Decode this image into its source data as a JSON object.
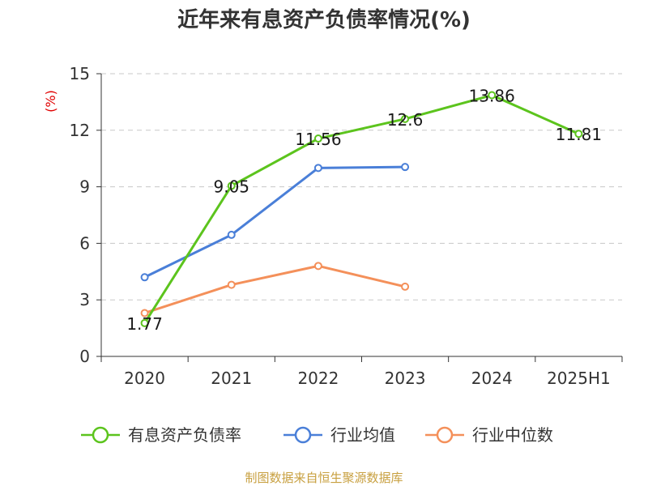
{
  "chart_data": {
    "type": "line",
    "title": "近年来有息资产负债率情况(%)",
    "y_unit": "(%)",
    "categories": [
      "2020",
      "2021",
      "2022",
      "2023",
      "2024",
      "2025H1"
    ],
    "ylim": [
      0,
      15
    ],
    "yticks": [
      "0",
      "3",
      "6",
      "9",
      "12",
      "15"
    ],
    "grid": true,
    "legend_position": "bottom",
    "series": [
      {
        "name": "有息资产负债率",
        "color": "#5cc41d",
        "values": [
          1.77,
          9.05,
          11.56,
          12.6,
          13.86,
          11.81
        ],
        "labels": [
          "1.77",
          "9.05",
          "11.56",
          "12.6",
          "13.86",
          "11.81"
        ]
      },
      {
        "name": "行业均值",
        "color": "#4a7fd8",
        "values": [
          4.2,
          6.45,
          10.0,
          10.05,
          null,
          null
        ]
      },
      {
        "name": "行业中位数",
        "color": "#f4905a",
        "values": [
          2.3,
          3.8,
          4.8,
          3.7,
          null,
          null
        ]
      }
    ]
  },
  "footer": {
    "source": "制图数据来自恒生聚源数据库"
  }
}
